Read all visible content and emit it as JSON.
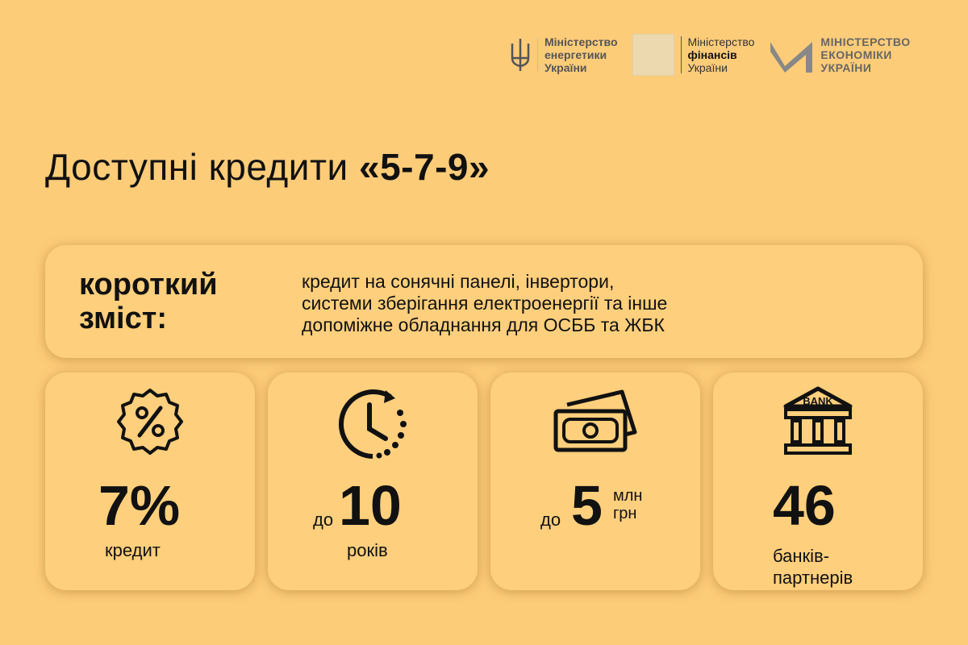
{
  "logos": [
    {
      "lines": [
        "Міністерство",
        "енергетики",
        "України"
      ]
    },
    {
      "lines": [
        "Міністерство",
        "фінансів",
        "України"
      ]
    },
    {
      "lines": [
        "МІНІСТЕРСТВО",
        "ЕКОНОМІКИ",
        "УКРАЇНИ"
      ]
    }
  ],
  "title": {
    "text": "Доступні кредити ",
    "highlight": "«5-7-9»"
  },
  "summary": {
    "heading_line1": "короткий",
    "heading_line2": "зміст:",
    "lines": [
      "кредит на сонячні панелі, інвертори,",
      "системи зберігання електроенергії та інше",
      "допоміжне обладнання для ОСББ та ЖБК"
    ]
  },
  "stats": [
    {
      "icon": "percent-badge-icon",
      "value": "7%",
      "caption": "кредит"
    },
    {
      "icon": "clock-icon",
      "prefix": "до",
      "value": "10",
      "caption": "років"
    },
    {
      "icon": "money-icon",
      "prefix": "до",
      "value": "5",
      "unit1": "млн",
      "unit2": "грн"
    },
    {
      "icon": "bank-icon",
      "value": "46",
      "caption1": "банків-",
      "caption2": "партнерів",
      "bank_text": "BANK"
    }
  ],
  "colors": {
    "background": "#fdcc79",
    "card": "#fecf7c",
    "text": "#111111"
  }
}
